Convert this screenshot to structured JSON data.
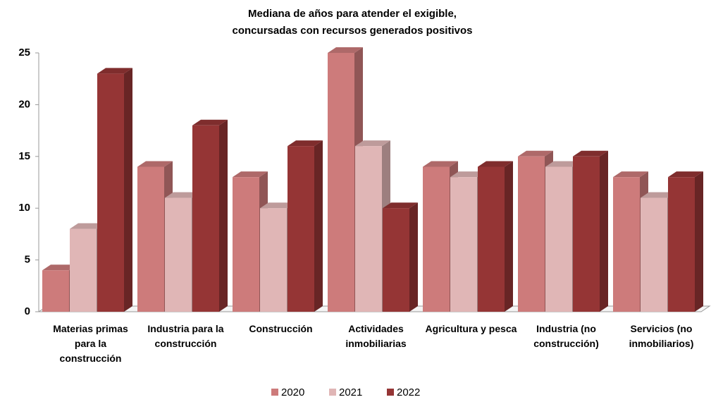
{
  "chart_data": {
    "type": "bar3d",
    "title": [
      "Mediana de años para atender el exigible,",
      "concursadas con recursos generados positivos"
    ],
    "categories": [
      "Materias primas para la construcción",
      "Industria para la construcción",
      "Construcción",
      "Actividades inmobiliarias",
      "Agricultura y pesca",
      "Industria (no construcción)",
      "Servicios (no inmobiliarios)"
    ],
    "series": [
      {
        "name": "2020",
        "color": "#cd7b7b",
        "values": [
          4,
          14,
          13,
          25,
          14,
          15,
          13
        ]
      },
      {
        "name": "2021",
        "color": "#e0b6b6",
        "values": [
          8,
          11,
          10,
          16,
          13,
          14,
          11
        ]
      },
      {
        "name": "2022",
        "color": "#953535",
        "values": [
          23,
          18,
          16,
          10,
          14,
          15,
          13
        ]
      }
    ],
    "ylim": [
      0,
      25
    ],
    "yticks": [
      0,
      5,
      10,
      15,
      20,
      25
    ],
    "grid": false,
    "legend": "bottom"
  }
}
